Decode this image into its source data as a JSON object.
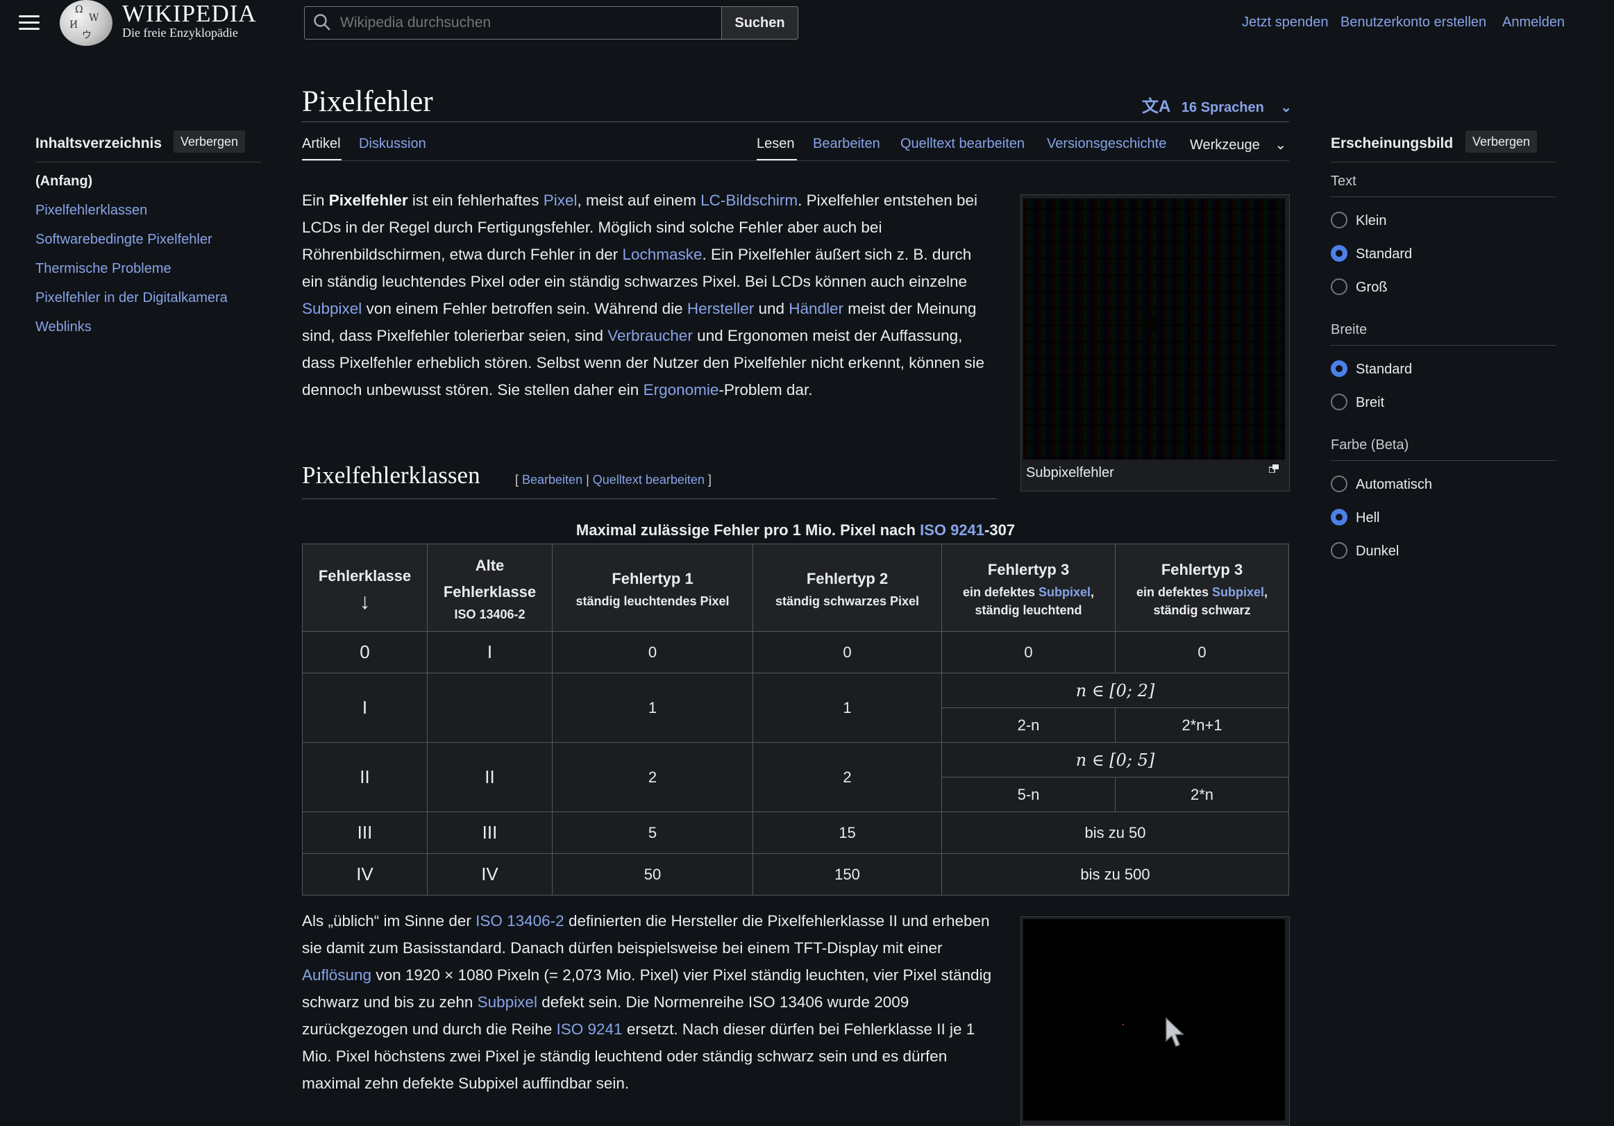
{
  "header": {
    "wordmark": "WIKIPEDIA",
    "tagline": "Die freie Enzyklopädie",
    "search_placeholder": "Wikipedia durchsuchen",
    "search_button": "Suchen",
    "user_links": [
      "Jetzt spenden",
      "Benutzerkonto erstellen",
      "Anmelden"
    ]
  },
  "toc": {
    "title": "Inhaltsverzeichnis",
    "hide": "Verbergen",
    "items": [
      "(Anfang)",
      "Pixelfehlerklassen",
      "Softwarebedingte Pixelfehler",
      "Thermische Probleme",
      "Pixelfehler in der Digitalkamera",
      "Weblinks"
    ]
  },
  "page": {
    "title": "Pixelfehler",
    "languages": "16 Sprachen",
    "tabs_left": [
      "Artikel",
      "Diskussion"
    ],
    "tabs_right": [
      "Lesen",
      "Bearbeiten",
      "Quelltext bearbeiten",
      "Versionsgeschichte",
      "Werkzeuge"
    ]
  },
  "intro": {
    "t1": "Ein ",
    "b1": "Pixelfehler",
    "t2": " ist ein fehlerhaftes ",
    "l1": "Pixel",
    "t3": ", meist auf einem ",
    "l2": "LC-Bildschirm",
    "t4": ". Pixelfehler entstehen bei LCDs in der Regel durch Fertigungsfehler. Möglich sind solche Fehler aber auch bei Röhrenbildschirmen, etwa durch Fehler in der ",
    "l3": "Lochmaske",
    "t5": ". Ein Pixelfehler äußert sich z. B. durch ein ständig leuchtendes Pixel oder ein ständig schwarzes Pixel. Bei LCDs können auch einzelne ",
    "l4": "Subpixel",
    "t6": " von einem Fehler betroffen sein. Während die ",
    "l5": "Hersteller",
    "t7": " und ",
    "l6": "Händler",
    "t8": " meist der Meinung sind, dass Pixelfehler tolerierbar seien, sind ",
    "l7": "Verbraucher",
    "t9": " und Ergonomen meist der Auffassung, dass Pixelfehler erheblich stören. Selbst wenn der Nutzer den Pixelfehler nicht erkennt, können sie dennoch unbewusst stören. Sie stellen daher ein ",
    "l8": "Ergonomie",
    "t10": "-Problem dar."
  },
  "figure1": {
    "caption": "Subpixelfehler"
  },
  "section": {
    "heading": "Pixelfehlerklassen",
    "edit": "Bearbeiten",
    "edit_source": "Quelltext bearbeiten"
  },
  "table": {
    "caption_pre": "Maximal zulässige Fehler pro 1 Mio. Pixel nach ",
    "caption_link": "ISO 9241",
    "caption_post": "-307",
    "headers": {
      "klasse": "Fehlerklasse",
      "arrow": "↓",
      "alte": "Alte Fehlerklasse",
      "alte_sub": "ISO 13406-2",
      "typ1": "Fehlertyp 1",
      "typ1_sub": "ständig leuchtendes Pixel",
      "typ2": "Fehlertyp 2",
      "typ2_sub": "ständig schwarzes Pixel",
      "typ3a": "Fehlertyp 3",
      "typ3a_pre": "ein defektes ",
      "typ3a_link": "Subpixel",
      "typ3a_post": ",",
      "typ3a_sub2": "ständig leuchtend",
      "typ3b": "Fehlertyp 3",
      "typ3b_pre": "ein defektes ",
      "typ3b_link": "Subpixel",
      "typ3b_post": ",",
      "typ3b_sub2": "ständig schwarz"
    },
    "rows": {
      "r0": {
        "klasse": "0",
        "alte": "I",
        "t1": "0",
        "t2": "0",
        "t3a": "0",
        "t3b": "0"
      },
      "r1": {
        "klasse": "I",
        "alte": "",
        "t1": "1",
        "t2": "1",
        "math": "n ∈ [0; 2]",
        "t3a": "2-n",
        "t3b": "2*n+1"
      },
      "r2": {
        "klasse": "II",
        "alte": "II",
        "t1": "2",
        "t2": "2",
        "math": "n ∈ [0; 5]",
        "t3a": "5-n",
        "t3b": "2*n"
      },
      "r3": {
        "klasse": "III",
        "alte": "III",
        "t1": "5",
        "t2": "15",
        "t3": "bis zu 50"
      },
      "r4": {
        "klasse": "IV",
        "alte": "IV",
        "t1": "50",
        "t2": "150",
        "t3": "bis zu 500"
      }
    }
  },
  "para2": {
    "t1": "Als „üblich“ im Sinne der ",
    "l1": "ISO 13406-2",
    "t2": " definierten die Hersteller die Pixelfehlerklasse II und erheben sie damit zum Basisstandard. Danach dürfen beispielsweise bei einem TFT-Display mit einer ",
    "l2": "Auflösung",
    "t3": " von 1920 × 1080 Pixeln (= 2,073 Mio. Pixel) vier Pixel ständig leuchten, vier Pixel ständig schwarz und bis zu zehn ",
    "l3": "Subpixel",
    "t4": " defekt sein. Die Normenreihe ISO 13406 wurde 2009 zurückgezogen und durch die Reihe ",
    "l4": "ISO 9241",
    "t5": " ersetzt. Nach dieser dürfen bei Fehlerklasse II je 1 Mio. Pixel höchstens zwei Pixel je ständig leuchtend oder ständig schwarz sein und es dürfen maximal zehn defekte Subpixel auffindbar sein."
  },
  "appearance": {
    "title": "Erscheinungsbild",
    "hide": "Verbergen",
    "text_group": "Text",
    "text_options": [
      "Klein",
      "Standard",
      "Groß"
    ],
    "text_selected": "Standard",
    "width_group": "Breite",
    "width_options": [
      "Standard",
      "Breit"
    ],
    "width_selected": "Standard",
    "color_group": "Farbe (Beta)",
    "color_options": [
      "Automatisch",
      "Hell",
      "Dunkel"
    ],
    "color_selected": "Hell"
  },
  "colors": {
    "background": "#101418",
    "link": "#88a3e8",
    "text": "#eaecf0",
    "radio_checked": "#4d7fe8"
  }
}
